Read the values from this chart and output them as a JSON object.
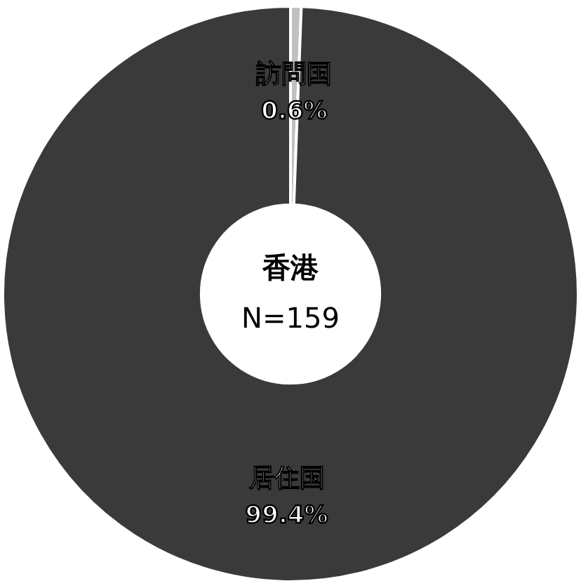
{
  "chart_data": {
    "type": "donut",
    "categories": [
      "訪問国",
      "居住国"
    ],
    "values": [
      0.6,
      99.4
    ],
    "value_labels": [
      "0.6%",
      "99.4%"
    ],
    "colors": [
      "#c0c0c0",
      "#3a3a3a"
    ],
    "annotations": [
      "香港",
      "N=159"
    ]
  }
}
